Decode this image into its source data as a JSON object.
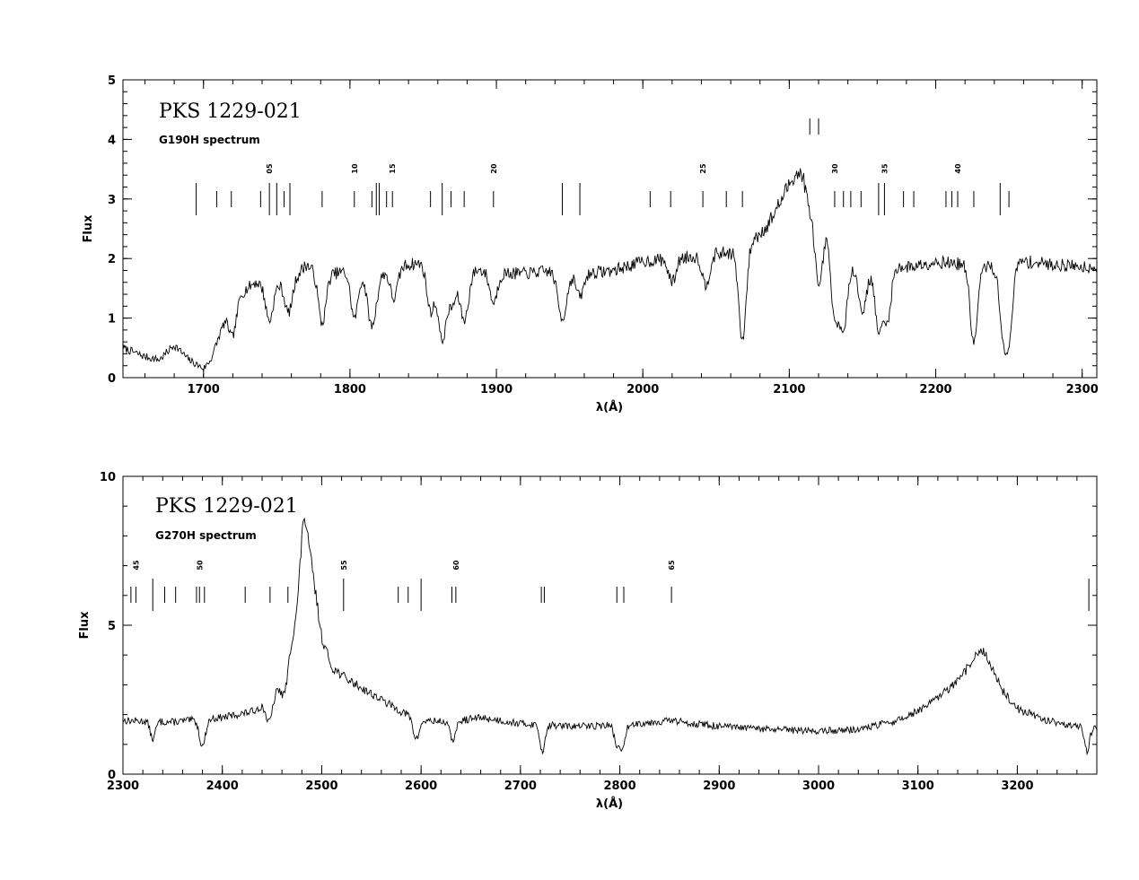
{
  "chart_data": [
    {
      "type": "line",
      "title": "PKS 1229-021",
      "subtitle": "G190H spectrum",
      "xlabel": "λ(Å)",
      "ylabel": "Flux",
      "xlim": [
        1645,
        2310
      ],
      "ylim": [
        0,
        5
      ],
      "xticks": [
        1700,
        1800,
        1900,
        2000,
        2100,
        2200,
        2300
      ],
      "yticks": [
        0,
        1,
        2,
        3,
        4,
        5
      ],
      "continuum": [
        [
          1645,
          0.5
        ],
        [
          1660,
          0.35
        ],
        [
          1670,
          0.3
        ],
        [
          1680,
          0.55
        ],
        [
          1690,
          0.3
        ],
        [
          1700,
          0.15
        ],
        [
          1705,
          0.3
        ],
        [
          1715,
          1.0
        ],
        [
          1725,
          1.4
        ],
        [
          1735,
          1.6
        ],
        [
          1745,
          1.55
        ],
        [
          1760,
          1.6
        ],
        [
          1770,
          1.9
        ],
        [
          1780,
          1.7
        ],
        [
          1800,
          1.8
        ],
        [
          1820,
          1.75
        ],
        [
          1840,
          1.9
        ],
        [
          1860,
          1.95
        ],
        [
          1880,
          1.85
        ],
        [
          1900,
          1.75
        ],
        [
          1920,
          1.75
        ],
        [
          1940,
          1.8
        ],
        [
          1960,
          1.75
        ],
        [
          1980,
          1.8
        ],
        [
          2000,
          1.95
        ],
        [
          2020,
          2.0
        ],
        [
          2040,
          2.05
        ],
        [
          2060,
          2.1
        ],
        [
          2075,
          2.3
        ],
        [
          2085,
          2.55
        ],
        [
          2095,
          3.0
        ],
        [
          2103,
          3.4
        ],
        [
          2110,
          3.45
        ],
        [
          2118,
          3.2
        ],
        [
          2124,
          2.6
        ],
        [
          2130,
          2.1
        ],
        [
          2140,
          1.95
        ],
        [
          2160,
          1.9
        ],
        [
          2180,
          1.85
        ],
        [
          2200,
          1.95
        ],
        [
          2220,
          1.9
        ],
        [
          2240,
          1.85
        ],
        [
          2260,
          1.95
        ],
        [
          2280,
          1.9
        ],
        [
          2310,
          1.85
        ]
      ],
      "absorption": [
        [
          1720,
          0.5,
          2.5
        ],
        [
          1745,
          0.6,
          2.5
        ],
        [
          1758,
          0.5,
          2.5
        ],
        [
          1781,
          0.8,
          2.5
        ],
        [
          1803,
          0.8,
          2.5
        ],
        [
          1815,
          0.9,
          3
        ],
        [
          1830,
          0.5,
          2.5
        ],
        [
          1855,
          0.8,
          2.5
        ],
        [
          1863,
          1.3,
          3
        ],
        [
          1870,
          0.6,
          2.5
        ],
        [
          1878,
          0.9,
          3
        ],
        [
          1898,
          0.5,
          2.5
        ],
        [
          1945,
          0.8,
          3
        ],
        [
          1957,
          0.4,
          2.5
        ],
        [
          2020,
          0.4,
          2.5
        ],
        [
          2043,
          0.5,
          2.5
        ],
        [
          2068,
          1.6,
          2.5
        ],
        [
          2114,
          0.5,
          2.5
        ],
        [
          2120,
          1.5,
          2.5
        ],
        [
          2131,
          1.1,
          2.5
        ],
        [
          2137,
          1.2,
          2.5
        ],
        [
          2150,
          0.8,
          3
        ],
        [
          2161,
          1.1,
          2.5
        ],
        [
          2167,
          0.9,
          2.5
        ],
        [
          2226,
          1.3,
          2.5
        ],
        [
          2246,
          1.0,
          2.5
        ],
        [
          2250,
          1.1,
          2.5
        ]
      ],
      "noise": 0.09,
      "noise_seed": 7,
      "markers": [
        {
          "x": 1695,
          "h": "long"
        },
        {
          "x": 1709,
          "h": "short"
        },
        {
          "x": 1719,
          "h": "short"
        },
        {
          "x": 1739,
          "h": "short"
        },
        {
          "x": 1745,
          "h": "long",
          "label": "05"
        },
        {
          "x": 1750,
          "h": "long"
        },
        {
          "x": 1755,
          "h": "short"
        },
        {
          "x": 1759,
          "h": "long"
        },
        {
          "x": 1781,
          "h": "short"
        },
        {
          "x": 1803,
          "h": "short",
          "label": "10"
        },
        {
          "x": 1815,
          "h": "short"
        },
        {
          "x": 1818,
          "h": "long"
        },
        {
          "x": 1820,
          "h": "long"
        },
        {
          "x": 1825,
          "h": "short"
        },
        {
          "x": 1829,
          "h": "short",
          "label": "15"
        },
        {
          "x": 1855,
          "h": "short"
        },
        {
          "x": 1863,
          "h": "long"
        },
        {
          "x": 1869,
          "h": "short"
        },
        {
          "x": 1878,
          "h": "short"
        },
        {
          "x": 1898,
          "h": "short",
          "label": "20"
        },
        {
          "x": 1945,
          "h": "long"
        },
        {
          "x": 1957,
          "h": "long"
        },
        {
          "x": 2005,
          "h": "short"
        },
        {
          "x": 2019,
          "h": "short"
        },
        {
          "x": 2041,
          "h": "short",
          "label": "25"
        },
        {
          "x": 2057,
          "h": "short"
        },
        {
          "x": 2068,
          "h": "short"
        },
        {
          "x": 2114,
          "h": "short",
          "y": 4.2
        },
        {
          "x": 2120,
          "h": "short",
          "y": 4.2
        },
        {
          "x": 2131,
          "h": "short",
          "label": "30"
        },
        {
          "x": 2137,
          "h": "short"
        },
        {
          "x": 2142,
          "h": "short"
        },
        {
          "x": 2149,
          "h": "short"
        },
        {
          "x": 2161,
          "h": "long"
        },
        {
          "x": 2165,
          "h": "long",
          "label": "35"
        },
        {
          "x": 2178,
          "h": "short"
        },
        {
          "x": 2185,
          "h": "short"
        },
        {
          "x": 2207,
          "h": "short"
        },
        {
          "x": 2211,
          "h": "short"
        },
        {
          "x": 2215,
          "h": "short",
          "label": "40"
        },
        {
          "x": 2226,
          "h": "short"
        },
        {
          "x": 2244,
          "h": "long"
        },
        {
          "x": 2250,
          "h": "short"
        }
      ]
    },
    {
      "type": "line",
      "title": "PKS 1229-021",
      "subtitle": "G270H spectrum",
      "xlabel": "λ(Å)",
      "ylabel": "Flux",
      "xlim": [
        2300,
        3280
      ],
      "ylim": [
        0,
        10
      ],
      "xticks": [
        2300,
        2400,
        2500,
        2600,
        2700,
        2800,
        2900,
        3000,
        3100,
        3200
      ],
      "yticks": [
        0,
        5,
        10
      ],
      "continuum": [
        [
          2300,
          1.8
        ],
        [
          2350,
          1.75
        ],
        [
          2400,
          1.9
        ],
        [
          2430,
          2.1
        ],
        [
          2450,
          2.5
        ],
        [
          2465,
          3.5
        ],
        [
          2475,
          5.5
        ],
        [
          2482,
          8.8
        ],
        [
          2490,
          7.0
        ],
        [
          2500,
          4.6
        ],
        [
          2510,
          3.6
        ],
        [
          2525,
          3.2
        ],
        [
          2540,
          2.9
        ],
        [
          2560,
          2.5
        ],
        [
          2580,
          2.1
        ],
        [
          2600,
          1.8
        ],
        [
          2630,
          1.75
        ],
        [
          2660,
          1.9
        ],
        [
          2700,
          1.7
        ],
        [
          2750,
          1.6
        ],
        [
          2800,
          1.65
        ],
        [
          2850,
          1.8
        ],
        [
          2900,
          1.6
        ],
        [
          2950,
          1.5
        ],
        [
          3000,
          1.45
        ],
        [
          3040,
          1.5
        ],
        [
          3080,
          1.8
        ],
        [
          3110,
          2.3
        ],
        [
          3140,
          3.1
        ],
        [
          3155,
          3.8
        ],
        [
          3163,
          4.2
        ],
        [
          3172,
          3.8
        ],
        [
          3185,
          2.8
        ],
        [
          3200,
          2.2
        ],
        [
          3230,
          1.8
        ],
        [
          3260,
          1.6
        ],
        [
          3280,
          1.55
        ]
      ],
      "absorption": [
        [
          2330,
          0.6,
          2.5
        ],
        [
          2380,
          0.9,
          3
        ],
        [
          2447,
          0.7,
          3
        ],
        [
          2462,
          0.6,
          3
        ],
        [
          2595,
          0.7,
          3
        ],
        [
          2632,
          0.6,
          3
        ],
        [
          2722,
          0.9,
          2.5
        ],
        [
          2797,
          0.7,
          2.5
        ],
        [
          2803,
          0.8,
          2.5
        ],
        [
          3270,
          0.8,
          2.5
        ]
      ],
      "noise": 0.14,
      "noise_seed": 13,
      "markers": [
        {
          "x": 2308,
          "h": "short"
        },
        {
          "x": 2313,
          "h": "short",
          "label": "45"
        },
        {
          "x": 2330,
          "h": "long"
        },
        {
          "x": 2342,
          "h": "short"
        },
        {
          "x": 2353,
          "h": "short"
        },
        {
          "x": 2374,
          "h": "short"
        },
        {
          "x": 2377,
          "h": "short",
          "label": "50"
        },
        {
          "x": 2382,
          "h": "short"
        },
        {
          "x": 2423,
          "h": "short"
        },
        {
          "x": 2448,
          "h": "short"
        },
        {
          "x": 2466,
          "h": "short"
        },
        {
          "x": 2522,
          "h": "long",
          "label": "55"
        },
        {
          "x": 2577,
          "h": "short"
        },
        {
          "x": 2587,
          "h": "short"
        },
        {
          "x": 2600,
          "h": "long"
        },
        {
          "x": 2631,
          "h": "short"
        },
        {
          "x": 2635,
          "h": "short",
          "label": "60"
        },
        {
          "x": 2721,
          "h": "short"
        },
        {
          "x": 2724,
          "h": "short"
        },
        {
          "x": 2797,
          "h": "short"
        },
        {
          "x": 2804,
          "h": "short"
        },
        {
          "x": 2852,
          "h": "short",
          "label": "65"
        },
        {
          "x": 3272,
          "h": "long"
        }
      ]
    }
  ]
}
